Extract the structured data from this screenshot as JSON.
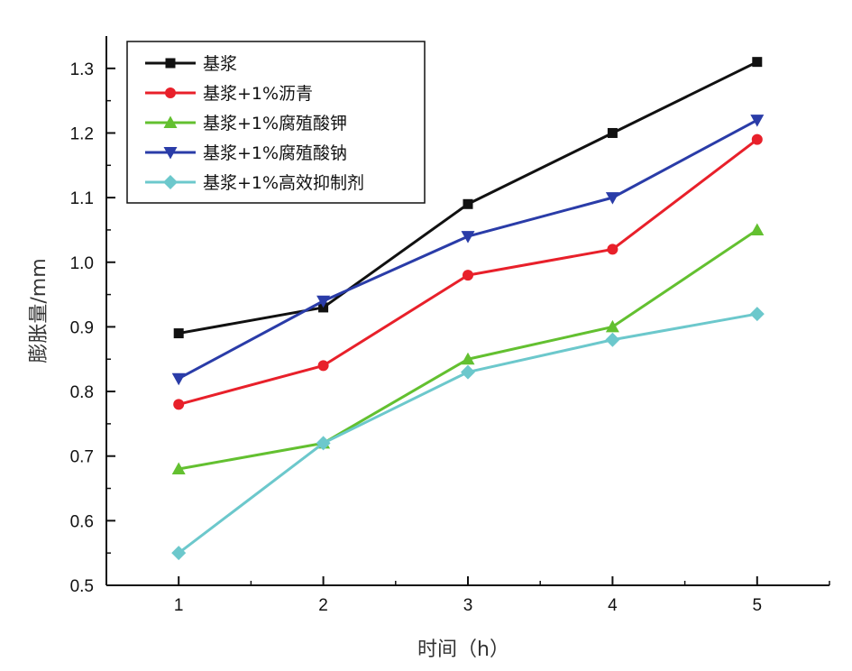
{
  "chart_data": {
    "type": "line",
    "title": "",
    "xlabel": "时间（h）",
    "ylabel": "膨胀量/mm",
    "x": [
      1,
      2,
      3,
      4,
      5
    ],
    "xlim": [
      0.5,
      5.5
    ],
    "ylim": [
      0.5,
      1.35
    ],
    "yticks": [
      "0.5",
      "0.6",
      "0.7",
      "0.8",
      "0.9",
      "1.0",
      "1.1",
      "1.2",
      "1.3"
    ],
    "xticks": [
      "1",
      "2",
      "3",
      "4",
      "5"
    ],
    "grid": false,
    "legend_position": "top-left",
    "series": [
      {
        "name": "基浆",
        "color": "#111111",
        "marker": "square",
        "values": [
          0.89,
          0.93,
          1.09,
          1.2,
          1.31
        ]
      },
      {
        "name": "基浆+1%沥青",
        "color": "#e8202a",
        "marker": "circle",
        "values": [
          0.78,
          0.84,
          0.98,
          1.02,
          1.19
        ]
      },
      {
        "name": "基浆+1%腐殖酸钾",
        "color": "#63c030",
        "marker": "triangle-up",
        "values": [
          0.68,
          0.72,
          0.85,
          0.9,
          1.05
        ]
      },
      {
        "name": "基浆+1%腐殖酸钠",
        "color": "#2a3ca8",
        "marker": "triangle-down",
        "values": [
          0.82,
          0.94,
          1.04,
          1.1,
          1.22
        ]
      },
      {
        "name": "基浆+1%高效抑制剂",
        "color": "#6cc8cc",
        "marker": "diamond",
        "values": [
          0.55,
          0.72,
          0.83,
          0.88,
          0.92
        ]
      }
    ]
  }
}
